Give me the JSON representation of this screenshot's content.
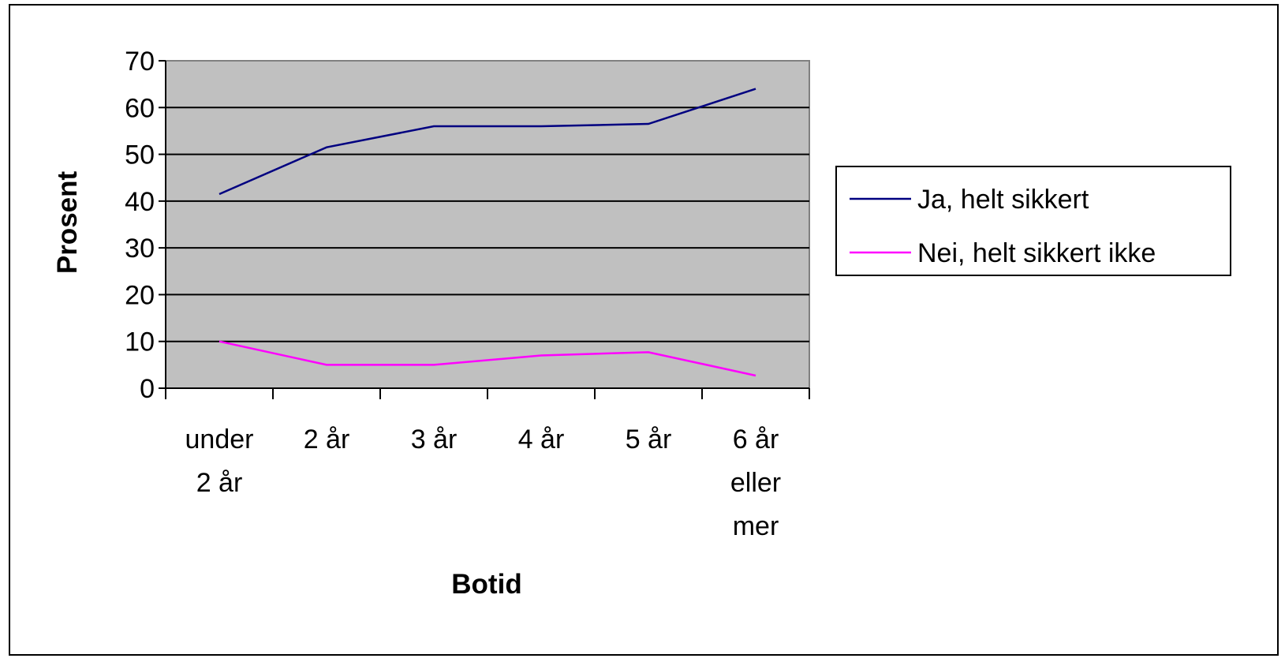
{
  "chart_data": {
    "type": "line",
    "title": "",
    "xlabel": "Botid",
    "ylabel": "Prosent",
    "ylim": [
      0,
      70
    ],
    "yticks": [
      0,
      10,
      20,
      30,
      40,
      50,
      60,
      70
    ],
    "categories": [
      [
        "under",
        "2 år"
      ],
      [
        "2 år"
      ],
      [
        "3 år"
      ],
      [
        "4 år"
      ],
      [
        "5 år"
      ],
      [
        "6 år",
        "eller",
        "mer"
      ]
    ],
    "series": [
      {
        "name": "Ja, helt sikkert",
        "color": "#000080",
        "values": [
          41.5,
          51.5,
          56,
          56,
          56.5,
          64
        ]
      },
      {
        "name": "Nei, helt sikkert ikke",
        "color": "#ff00ff",
        "values": [
          10,
          5,
          5,
          7,
          7.7,
          2.7
        ]
      }
    ],
    "grid": true,
    "plot_background": "#c0c0c0",
    "legend_position": "right"
  }
}
